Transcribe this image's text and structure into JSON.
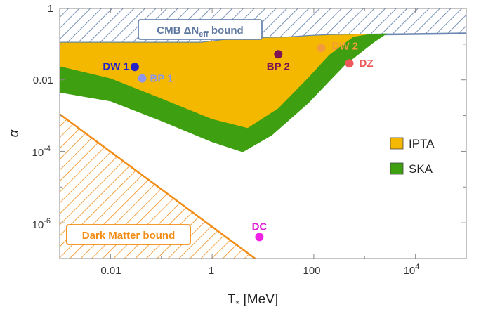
{
  "chart_data": {
    "type": "scatter",
    "xlabel_main": "T",
    "xlabel_sub": "*",
    "xlabel_unit": "[MeV]",
    "ylabel": "α",
    "xscale": "log",
    "yscale": "log",
    "xlim": [
      0.001,
      100000
    ],
    "ylim": [
      1e-07,
      1
    ],
    "xticks": [
      {
        "value": 0.01,
        "base": "0.01",
        "sup": ""
      },
      {
        "value": 1,
        "base": "1",
        "sup": ""
      },
      {
        "value": 100,
        "base": "100",
        "sup": ""
      },
      {
        "value": 10000,
        "base": "10",
        "sup": "4"
      }
    ],
    "yticks": [
      {
        "value": 1,
        "base": "1",
        "sup": ""
      },
      {
        "value": 0.01,
        "base": "0.01",
        "sup": ""
      },
      {
        "value": 0.0001,
        "base": "10",
        "sup": "-4"
      },
      {
        "value": 1e-06,
        "base": "10",
        "sup": "-6"
      }
    ],
    "regions": {
      "cmb": {
        "label_main": "CMB ΔN",
        "label_sub": "eff",
        "label_tail": " bound",
        "color": "#6b87b0",
        "boundary": [
          [
            0.001,
            0.11
          ],
          [
            0.6,
            0.11
          ],
          [
            3,
            0.145
          ],
          [
            30,
            0.155
          ],
          [
            80,
            0.17
          ],
          [
            200,
            0.18
          ],
          [
            5000,
            0.19
          ],
          [
            100000,
            0.2
          ]
        ]
      },
      "ipta": {
        "label": "IPTA",
        "color": "#f5b800",
        "upper": [
          [
            0.001,
            0.11
          ],
          [
            0.6,
            0.11
          ],
          [
            3,
            0.145
          ],
          [
            30,
            0.155
          ],
          [
            80,
            0.17
          ],
          [
            200,
            0.18
          ],
          [
            1200,
            0.19
          ]
        ],
        "lower": [
          [
            0.001,
            0.024
          ],
          [
            0.01,
            0.011
          ],
          [
            0.1,
            0.003
          ],
          [
            1,
            0.0008
          ],
          [
            5,
            0.00045
          ],
          [
            20,
            0.0016
          ],
          [
            80,
            0.012
          ],
          [
            200,
            0.05
          ],
          [
            600,
            0.16
          ],
          [
            1200,
            0.19
          ]
        ]
      },
      "ska": {
        "label": "SKA",
        "color": "#3ea010",
        "lower": [
          [
            0.001,
            0.0044
          ],
          [
            0.01,
            0.0025
          ],
          [
            0.1,
            0.0007
          ],
          [
            1,
            0.00018
          ],
          [
            4,
            9.5e-05
          ],
          [
            15,
            0.00028
          ],
          [
            80,
            0.0023
          ],
          [
            400,
            0.025
          ],
          [
            1500,
            0.11
          ],
          [
            2800,
            0.2
          ]
        ]
      },
      "dark_matter": {
        "label": "Dark Matter bound",
        "color": "#f28c15",
        "boundary": [
          [
            0.001,
            0.0011
          ],
          [
            7,
            1e-07
          ]
        ]
      }
    },
    "points": [
      {
        "label": "DW 1",
        "x": 0.03,
        "y": 0.023,
        "color": "#2622c8",
        "label_color": "#2622c8"
      },
      {
        "label": "BP 1",
        "x": 0.042,
        "y": 0.011,
        "color": "#8e97e8",
        "label_color": "#8e97e8"
      },
      {
        "label": "BP 2",
        "x": 20,
        "y": 0.052,
        "color": "#7d1255",
        "label_color": "#7d1255"
      },
      {
        "label": "DW 2",
        "x": 140,
        "y": 0.078,
        "color": "#f29a3c",
        "label_color": "#f29a3c"
      },
      {
        "label": "DZ",
        "x": 500,
        "y": 0.029,
        "color": "#ed5858",
        "label_color": "#ed5858"
      },
      {
        "label": "DC",
        "x": 8.5,
        "y": 4e-07,
        "color": "#f221e6",
        "label_color": "#e020d4"
      }
    ]
  }
}
